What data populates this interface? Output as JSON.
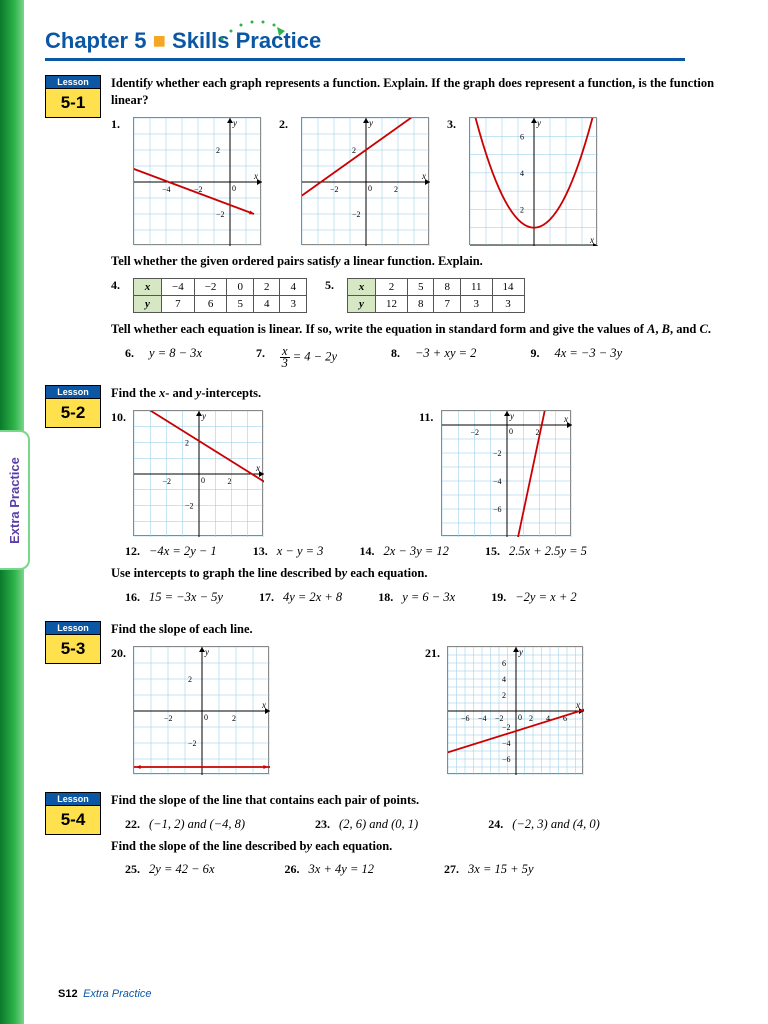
{
  "page": {
    "chapter_label": "Chapter 5",
    "separator": "■",
    "chapter_subtitle": "Skills Practice",
    "tab_text": "Extra Practice",
    "footer_page": "S12",
    "footer_text": "Extra Practice"
  },
  "colors": {
    "brand_blue": "#0b57a4",
    "accent_yellow": "#ffe14d",
    "grid_blue": "#8ec9e6",
    "plot_red": "#c00",
    "green_stripe": "#2db34a"
  },
  "lessons": [
    {
      "tag_top": "Lesson",
      "tag_num": "5-1",
      "sections": [
        {
          "instruction": "Identify whether each graph represents a function. Explain. If the graph does represent a function, is the function linear?",
          "graphs": [
            {
              "num": "1.",
              "type": "line",
              "xrange": [
                -6,
                2
              ],
              "yrange": [
                -4,
                4
              ],
              "p1": [
                -6.5,
                1
              ],
              "p2": [
                1.5,
                -2
              ]
            },
            {
              "num": "2.",
              "type": "line",
              "xrange": [
                -4,
                4
              ],
              "yrange": [
                -4,
                4
              ],
              "p1": [
                -4.5,
                -1.2
              ],
              "p2": [
                3.5,
                4.5
              ]
            },
            {
              "num": "3.",
              "type": "parabola",
              "xrange": [
                -4,
                4
              ],
              "yrange": [
                0,
                7
              ],
              "vertex": [
                0,
                1
              ],
              "a": 0.45
            }
          ]
        },
        {
          "instruction": "Tell whether the given ordered pairs satisfy a linear function. Explain.",
          "tables": [
            {
              "num": "4.",
              "x": [
                "−4",
                "−2",
                "0",
                "2",
                "4"
              ],
              "y": [
                "7",
                "6",
                "5",
                "4",
                "3"
              ]
            },
            {
              "num": "5.",
              "x": [
                "2",
                "5",
                "8",
                "11",
                "14"
              ],
              "y": [
                "12",
                "8",
                "7",
                "3",
                "3"
              ]
            }
          ]
        },
        {
          "instruction": "Tell whether each equation is linear. If so, write the equation in standard form and give the values of A, B, and C.",
          "equations": [
            {
              "num": "6.",
              "tex": "y = 8 − 3x"
            },
            {
              "num": "7.",
              "tex": "x⁄3 = 4 − 2y",
              "frac": true
            },
            {
              "num": "8.",
              "tex": "−3 + xy = 2"
            },
            {
              "num": "9.",
              "tex": "4x = −3 − 3y"
            }
          ]
        }
      ]
    },
    {
      "tag_top": "Lesson",
      "tag_num": "5-2",
      "sections": [
        {
          "instruction": "Find the x- and y-intercepts.",
          "graphs": [
            {
              "num": "10.",
              "type": "line",
              "xrange": [
                -4,
                4
              ],
              "yrange": [
                -4,
                4
              ],
              "p1": [
                -4.5,
                5
              ],
              "p2": [
                4.5,
                -0.8
              ]
            },
            {
              "num": "11.",
              "type": "line",
              "xrange": [
                -4,
                4
              ],
              "yrange": [
                -8,
                1
              ],
              "p1": [
                0.5,
                -9
              ],
              "p2": [
                2.5,
                2
              ]
            }
          ],
          "eq_rows": [
            [
              {
                "num": "12.",
                "tex": "−4x = 2y − 1"
              },
              {
                "num": "13.",
                "tex": "x − y = 3"
              },
              {
                "num": "14.",
                "tex": "2x − 3y = 12"
              },
              {
                "num": "15.",
                "tex": "2.5x + 2.5y = 5"
              }
            ]
          ]
        },
        {
          "instruction": "Use intercepts to graph the line described by each equation.",
          "eq_rows": [
            [
              {
                "num": "16.",
                "tex": "15 = −3x − 5y"
              },
              {
                "num": "17.",
                "tex": "4y = 2x + 8"
              },
              {
                "num": "18.",
                "tex": "y = 6 − 3x"
              },
              {
                "num": "19.",
                "tex": "−2y = x + 2"
              }
            ]
          ]
        }
      ]
    },
    {
      "tag_top": "Lesson",
      "tag_num": "5-3",
      "sections": [
        {
          "instruction": "Find the slope of each line.",
          "graphs": [
            {
              "num": "20.",
              "type": "hline",
              "xrange": [
                -4,
                4
              ],
              "yrange": [
                -4,
                4
              ],
              "y": -3.5
            },
            {
              "num": "21.",
              "type": "line",
              "xrange": [
                -8,
                8
              ],
              "yrange": [
                -8,
                8
              ],
              "p1": [
                -9,
                -5.5
              ],
              "p2": [
                9,
                0.5
              ]
            }
          ]
        }
      ]
    },
    {
      "tag_top": "Lesson",
      "tag_num": "5-4",
      "sections": [
        {
          "instruction": "Find the slope of the line that contains each pair of points.",
          "eq_rows": [
            [
              {
                "num": "22.",
                "tex": "(−1, 2) and (−4, 8)"
              },
              {
                "num": "23.",
                "tex": "(2, 6) and (0, 1)"
              },
              {
                "num": "24.",
                "tex": "(−2, 3) and (4, 0)"
              }
            ]
          ]
        },
        {
          "instruction": "Find the slope of the line described by each equation.",
          "eq_rows": [
            [
              {
                "num": "25.",
                "tex": "2y = 42 − 6x"
              },
              {
                "num": "26.",
                "tex": "3x + 4y = 12"
              },
              {
                "num": "27.",
                "tex": "3x = 15 + 5y"
              }
            ]
          ]
        }
      ]
    }
  ]
}
